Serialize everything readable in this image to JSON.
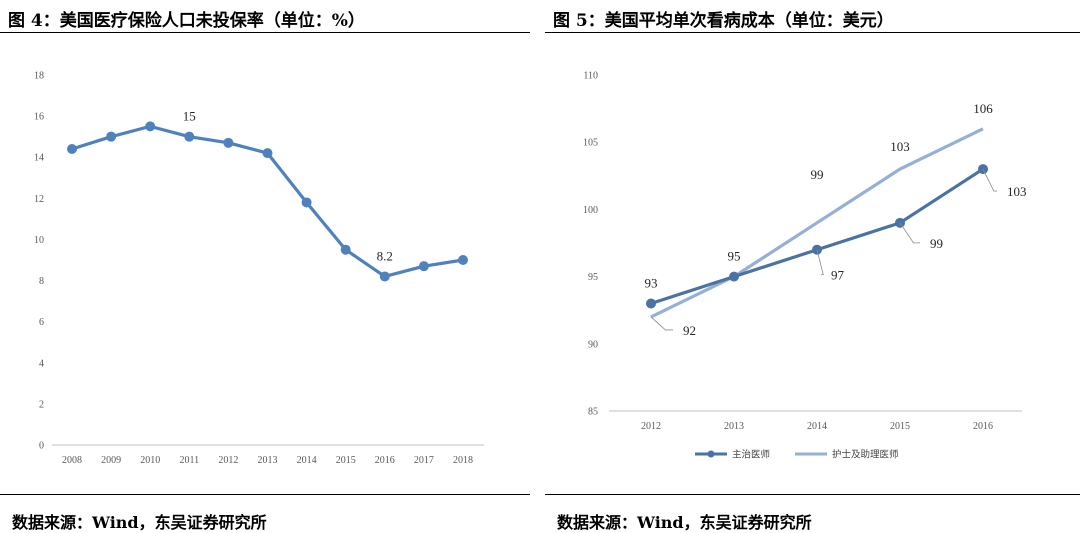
{
  "left_panel": {
    "title": "图 4：美国医疗保险人口未投保率（单位：%）",
    "source": "数据来源：Wind，东吴证券研究所"
  },
  "right_panel": {
    "title": "图 5：美国平均单次看病成本（单位：美元）",
    "source": "数据来源：Wind，东吴证券研究所"
  },
  "chart_data": [
    {
      "type": "line",
      "categories": [
        "2008",
        "2009",
        "2010",
        "2011",
        "2012",
        "2013",
        "2014",
        "2015",
        "2016",
        "2017",
        "2018"
      ],
      "series": [
        {
          "values": [
            14.4,
            15.0,
            15.5,
            15.0,
            14.7,
            14.2,
            11.8,
            9.5,
            8.2,
            8.7,
            9.0
          ],
          "color": "#4f81bd"
        }
      ],
      "data_labels": [
        {
          "category": "2011",
          "text": "15"
        },
        {
          "category": "2016",
          "text": "8.2"
        }
      ],
      "ylim": [
        0,
        18
      ],
      "yticks": [
        "0",
        "2",
        "4",
        "6",
        "8",
        "10",
        "12",
        "14",
        "16",
        "18"
      ],
      "grid": false,
      "legend": "none"
    },
    {
      "type": "line",
      "categories": [
        "2012",
        "2013",
        "2014",
        "2015",
        "2016"
      ],
      "series": [
        {
          "name": "主治医师",
          "values": [
            93,
            95,
            97,
            99,
            103
          ],
          "color": "#4a73a3",
          "markers": true
        },
        {
          "name": "护士及助理医师",
          "values": [
            92,
            95,
            99,
            103,
            106
          ],
          "color": "#95b0d6",
          "markers": false
        }
      ],
      "data_labels": [
        {
          "series": 0,
          "category": "2012",
          "text": "93"
        },
        {
          "series": 0,
          "category": "2013",
          "text": "95"
        },
        {
          "series": 0,
          "category": "2014",
          "text": "97"
        },
        {
          "series": 0,
          "category": "2015",
          "text": "99"
        },
        {
          "series": 0,
          "category": "2016",
          "text": "103"
        },
        {
          "series": 1,
          "category": "2012",
          "text": "92"
        },
        {
          "series": 1,
          "category": "2014",
          "text": "99"
        },
        {
          "series": 1,
          "category": "2015",
          "text": "103"
        },
        {
          "series": 1,
          "category": "2016",
          "text": "106"
        }
      ],
      "ylim": [
        85,
        110
      ],
      "yticks": [
        "85",
        "90",
        "95",
        "100",
        "105",
        "110"
      ],
      "grid": false,
      "legend": "bottom"
    }
  ]
}
